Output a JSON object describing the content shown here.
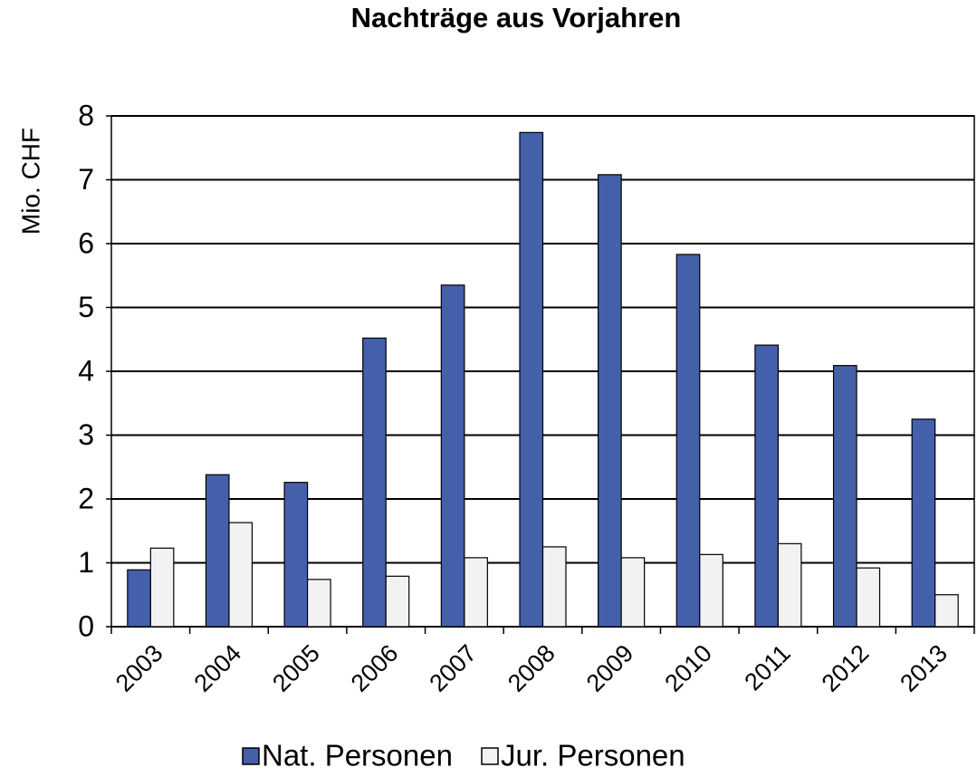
{
  "chart_data": {
    "type": "bar",
    "title": "Nachträge aus Vorjahren",
    "y_label": "Mio. CHF",
    "categories": [
      "2003",
      "2004",
      "2005",
      "2006",
      "2007",
      "2008",
      "2009",
      "2010",
      "2011",
      "2012",
      "2013"
    ],
    "series": [
      {
        "name": "Nat. Personen",
        "color": "#4560ab",
        "values": [
          0.89,
          2.38,
          2.26,
          4.52,
          5.35,
          7.74,
          7.08,
          5.83,
          4.41,
          4.09,
          3.25
        ]
      },
      {
        "name": "Jur. Personen",
        "color": "#f2f2f2",
        "values": [
          1.23,
          1.63,
          0.74,
          0.79,
          1.08,
          1.25,
          1.08,
          1.13,
          1.3,
          0.92,
          0.5
        ]
      }
    ],
    "ylim": [
      0,
      8
    ],
    "yticks": [
      0,
      1,
      2,
      3,
      4,
      5,
      6,
      7,
      8
    ],
    "grid": true,
    "legend": "bottom"
  }
}
